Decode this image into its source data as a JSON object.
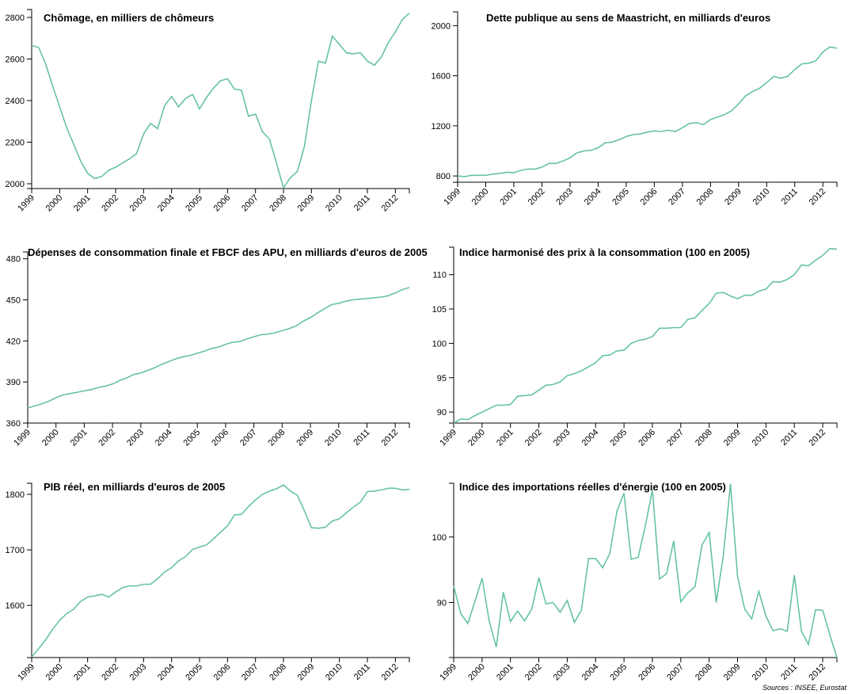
{
  "chart_data": [
    {
      "type": "line",
      "title": "Chômage, en milliers de chômeurs",
      "color": "#66c2a5",
      "x": [
        1999,
        1999.25,
        1999.5,
        1999.75,
        2000,
        2000.25,
        2000.5,
        2000.75,
        2001,
        2001.25,
        2001.5,
        2001.75,
        2002,
        2002.25,
        2002.5,
        2002.75,
        2003,
        2003.25,
        2003.5,
        2003.75,
        2004,
        2004.25,
        2004.5,
        2004.75,
        2005,
        2005.25,
        2005.5,
        2005.75,
        2006,
        2006.25,
        2006.5,
        2006.75,
        2007,
        2007.25,
        2007.5,
        2007.75,
        2008,
        2008.25,
        2008.5,
        2008.75,
        2009,
        2009.25,
        2009.5,
        2009.75,
        2010,
        2010.25,
        2010.5,
        2010.75,
        2011,
        2011.25,
        2011.5,
        2011.75,
        2012,
        2012.25,
        2012.5
      ],
      "values": [
        2665,
        2655,
        2575,
        2470,
        2370,
        2270,
        2190,
        2110,
        2050,
        2025,
        2035,
        2065,
        2080,
        2100,
        2120,
        2145,
        2240,
        2290,
        2265,
        2375,
        2420,
        2370,
        2410,
        2430,
        2360,
        2415,
        2460,
        2495,
        2505,
        2455,
        2450,
        2325,
        2335,
        2250,
        2215,
        2100,
        1980,
        2030,
        2060,
        2180,
        2400,
        2590,
        2580,
        2710,
        2670,
        2630,
        2625,
        2630,
        2590,
        2570,
        2610,
        2680,
        2730,
        2790,
        2820
      ],
      "xlim": [
        1999,
        2012.5
      ],
      "xticks": [
        1999,
        2000,
        2001,
        2002,
        2003,
        2004,
        2005,
        2006,
        2007,
        2008,
        2009,
        2010,
        2011,
        2012
      ],
      "ylim": [
        1977,
        2838
      ],
      "yticks": [
        2000,
        2200,
        2400,
        2600,
        2800
      ]
    },
    {
      "type": "line",
      "title": "Dette publique au sens de Maastricht, en milliards d'euros",
      "color": "#66c2a5",
      "x": [
        1999,
        1999.25,
        1999.5,
        1999.75,
        2000,
        2000.25,
        2000.5,
        2000.75,
        2001,
        2001.25,
        2001.5,
        2001.75,
        2002,
        2002.25,
        2002.5,
        2002.75,
        2003,
        2003.25,
        2003.5,
        2003.75,
        2004,
        2004.25,
        2004.5,
        2004.75,
        2005,
        2005.25,
        2005.5,
        2005.75,
        2006,
        2006.25,
        2006.5,
        2006.75,
        2007,
        2007.25,
        2007.5,
        2007.75,
        2008,
        2008.25,
        2008.5,
        2008.75,
        2009,
        2009.25,
        2009.5,
        2009.75,
        2010,
        2010.25,
        2010.5,
        2010.75,
        2011,
        2011.25,
        2011.5,
        2011.75,
        2012,
        2012.25,
        2012.5
      ],
      "values": [
        800,
        795,
        805,
        805,
        805,
        815,
        820,
        830,
        825,
        845,
        855,
        855,
        870,
        900,
        900,
        920,
        945,
        985,
        1000,
        1005,
        1025,
        1065,
        1070,
        1090,
        1115,
        1130,
        1135,
        1150,
        1160,
        1155,
        1165,
        1155,
        1185,
        1220,
        1225,
        1210,
        1250,
        1270,
        1290,
        1320,
        1375,
        1440,
        1475,
        1500,
        1545,
        1595,
        1580,
        1595,
        1650,
        1695,
        1700,
        1720,
        1790,
        1830,
        1820
      ],
      "xlim": [
        1999,
        2012.5
      ],
      "xticks": [
        1999,
        2000,
        2001,
        2002,
        2003,
        2004,
        2005,
        2006,
        2007,
        2008,
        2009,
        2010,
        2011,
        2012
      ],
      "ylim": [
        750,
        2110
      ],
      "yticks": [
        800,
        1200,
        1600,
        2000
      ]
    },
    {
      "type": "line",
      "title": "Dépenses de consommation finale et FBCF des APU, en milliards d'euros de 2005",
      "color": "#66c2a5",
      "x": [
        1999,
        1999.25,
        1999.5,
        1999.75,
        2000,
        2000.25,
        2000.5,
        2000.75,
        2001,
        2001.25,
        2001.5,
        2001.75,
        2002,
        2002.25,
        2002.5,
        2002.75,
        2003,
        2003.25,
        2003.5,
        2003.75,
        2004,
        2004.25,
        2004.5,
        2004.75,
        2005,
        2005.25,
        2005.5,
        2005.75,
        2006,
        2006.25,
        2006.5,
        2006.75,
        2007,
        2007.25,
        2007.5,
        2007.75,
        2008,
        2008.25,
        2008.5,
        2008.75,
        2009,
        2009.25,
        2009.5,
        2009.75,
        2010,
        2010.25,
        2010.5,
        2010.75,
        2011,
        2011.25,
        2011.5,
        2011.75,
        2012,
        2012.25,
        2012.5
      ],
      "values": [
        371,
        372.5,
        374,
        376,
        378.5,
        380.5,
        381.5,
        382.5,
        383.5,
        384.5,
        386,
        387,
        388.5,
        391,
        393,
        395.5,
        396.5,
        398.5,
        400.5,
        403,
        405,
        407,
        408.5,
        409.5,
        411,
        412.5,
        414.5,
        415.5,
        417.5,
        419,
        419.5,
        421.5,
        423,
        424.5,
        425,
        426,
        427.5,
        429,
        431,
        434.5,
        437,
        440.5,
        443.5,
        446.5,
        447.5,
        449,
        450,
        450.5,
        451,
        451.5,
        452,
        453,
        455,
        457.5,
        459
      ],
      "xlim": [
        1999,
        2012.5
      ],
      "xticks": [
        1999,
        2000,
        2001,
        2002,
        2003,
        2004,
        2005,
        2006,
        2007,
        2008,
        2009,
        2010,
        2011,
        2012
      ],
      "ylim": [
        360,
        485
      ],
      "yticks": [
        360,
        390,
        420,
        450,
        480
      ]
    },
    {
      "type": "line",
      "title": "Indice harmonisé des prix à la consommation (100 en 2005)",
      "color": "#66c2a5",
      "x": [
        1999,
        1999.25,
        1999.5,
        1999.75,
        2000,
        2000.25,
        2000.5,
        2000.75,
        2001,
        2001.25,
        2001.5,
        2001.75,
        2002,
        2002.25,
        2002.5,
        2002.75,
        2003,
        2003.25,
        2003.5,
        2003.75,
        2004,
        2004.25,
        2004.5,
        2004.75,
        2005,
        2005.25,
        2005.5,
        2005.75,
        2006,
        2006.25,
        2006.5,
        2006.75,
        2007,
        2007.25,
        2007.5,
        2007.75,
        2008,
        2008.25,
        2008.5,
        2008.75,
        2009,
        2009.25,
        2009.5,
        2009.75,
        2010,
        2010.25,
        2010.5,
        2010.75,
        2011,
        2011.25,
        2011.5,
        2011.75,
        2012,
        2012.25,
        2012.5
      ],
      "values": [
        88.4,
        89,
        88.9,
        89.5,
        90,
        90.5,
        91,
        91,
        91.1,
        92.3,
        92.4,
        92.5,
        93.2,
        93.9,
        94,
        94.4,
        95.3,
        95.6,
        96,
        96.6,
        97.2,
        98.2,
        98.3,
        98.9,
        99,
        100,
        100.4,
        100.6,
        101,
        102.2,
        102.2,
        102.3,
        102.3,
        103.5,
        103.7,
        104.8,
        105.8,
        107.3,
        107.4,
        106.9,
        106.5,
        107,
        107,
        107.6,
        107.9,
        109,
        108.9,
        109.3,
        110,
        111.4,
        111.3,
        112.1,
        112.8,
        113.8,
        113.7
      ],
      "xlim": [
        1999,
        2012.5
      ],
      "xticks": [
        1999,
        2000,
        2001,
        2002,
        2003,
        2004,
        2005,
        2006,
        2007,
        2008,
        2009,
        2010,
        2011,
        2012
      ],
      "ylim": [
        88.4,
        114
      ],
      "yticks": [
        90,
        95,
        100,
        105,
        110
      ]
    },
    {
      "type": "line",
      "title": "PIB réel, en milliards d'euros de 2005",
      "color": "#66c2a5",
      "x": [
        1999,
        1999.25,
        1999.5,
        1999.75,
        2000,
        2000.25,
        2000.5,
        2000.75,
        2001,
        2001.25,
        2001.5,
        2001.75,
        2002,
        2002.25,
        2002.5,
        2002.75,
        2003,
        2003.25,
        2003.5,
        2003.75,
        2004,
        2004.25,
        2004.5,
        2004.75,
        2005,
        2005.25,
        2005.5,
        2005.75,
        2006,
        2006.25,
        2006.5,
        2006.75,
        2007,
        2007.25,
        2007.5,
        2007.75,
        2008,
        2008.25,
        2008.5,
        2008.75,
        2009,
        2009.25,
        2009.5,
        2009.75,
        2010,
        2010.25,
        2010.5,
        2010.75,
        2011,
        2011.25,
        2011.5,
        2011.75,
        2012,
        2012.25,
        2012.5
      ],
      "values": [
        1507,
        1522,
        1538,
        1557,
        1573,
        1585,
        1593,
        1607,
        1615,
        1617,
        1620,
        1615,
        1624,
        1632,
        1635,
        1635,
        1638,
        1638,
        1648,
        1660,
        1668,
        1680,
        1688,
        1701,
        1705,
        1709,
        1720,
        1732,
        1743,
        1763,
        1764,
        1778,
        1790,
        1800,
        1806,
        1810,
        1817,
        1806,
        1798,
        1770,
        1740,
        1739,
        1741,
        1752,
        1756,
        1767,
        1777,
        1786,
        1805,
        1806,
        1808,
        1811,
        1811,
        1808,
        1809
      ],
      "xlim": [
        1999,
        2012.5
      ],
      "xticks": [
        1999,
        2000,
        2001,
        2002,
        2003,
        2004,
        2005,
        2006,
        2007,
        2008,
        2009,
        2010,
        2011,
        2012
      ],
      "ylim": [
        1506,
        1820
      ],
      "yticks": [
        1600,
        1700,
        1800
      ]
    },
    {
      "type": "line",
      "title": "Indice des importations réelles d'énergie (100 en 2005)",
      "color": "#66c2a5",
      "x": [
        1999,
        1999.25,
        1999.5,
        1999.75,
        2000,
        2000.25,
        2000.5,
        2000.75,
        2001,
        2001.25,
        2001.5,
        2001.75,
        2002,
        2002.25,
        2002.5,
        2002.75,
        2003,
        2003.25,
        2003.5,
        2003.75,
        2004,
        2004.25,
        2004.5,
        2004.75,
        2005,
        2005.25,
        2005.5,
        2005.75,
        2006,
        2006.25,
        2006.5,
        2006.75,
        2007,
        2007.25,
        2007.5,
        2007.75,
        2008,
        2008.25,
        2008.5,
        2008.75,
        2009,
        2009.25,
        2009.5,
        2009.75,
        2010,
        2010.25,
        2010.5,
        2010.75,
        2011,
        2011.25,
        2011.5,
        2011.75,
        2012,
        2012.25,
        2012.5
      ],
      "values": [
        92.5,
        88.3,
        86.8,
        90.2,
        93.7,
        87.2,
        83.2,
        91.6,
        87.1,
        88.7,
        87.2,
        89,
        93.8,
        89.8,
        90,
        88.5,
        90.3,
        87,
        88.8,
        96.7,
        96.7,
        95.3,
        97.5,
        103.9,
        106.7,
        96.6,
        96.9,
        101.7,
        107.2,
        93.6,
        94.4,
        99.4,
        90.1,
        91.5,
        92.4,
        98.8,
        100.7,
        90,
        97.2,
        108.1,
        94,
        89,
        87.5,
        91.7,
        87.9,
        85.7,
        86,
        85.6,
        94.2,
        85.6,
        83.6,
        88.9,
        88.8,
        85.1,
        81.6
      ],
      "xlim": [
        1999,
        2012.5
      ],
      "xticks": [
        1999,
        2000,
        2001,
        2002,
        2003,
        2004,
        2005,
        2006,
        2007,
        2008,
        2009,
        2010,
        2011,
        2012
      ],
      "ylim": [
        81.6,
        108.2
      ],
      "yticks": [
        90,
        100
      ]
    }
  ],
  "source": "Sources : INSEE, Eurostat"
}
